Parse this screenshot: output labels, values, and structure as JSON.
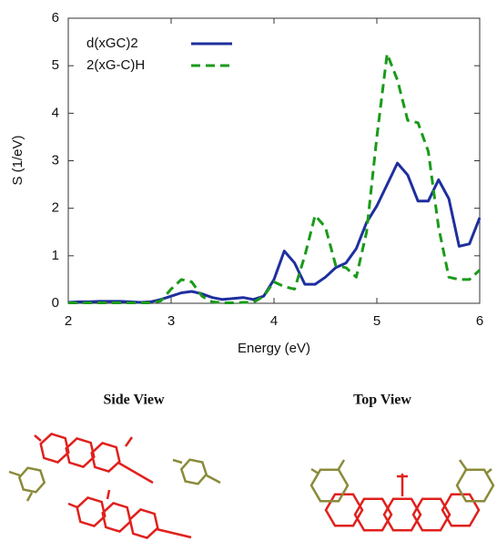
{
  "chart_data": {
    "type": "line",
    "x_label": "Energy (eV)",
    "y_label": "S (1/eV)",
    "x": [
      2.0,
      2.1,
      2.2,
      2.3,
      2.4,
      2.5,
      2.6,
      2.7,
      2.8,
      2.9,
      3.0,
      3.1,
      3.2,
      3.3,
      3.4,
      3.5,
      3.6,
      3.7,
      3.8,
      3.9,
      4.0,
      4.1,
      4.2,
      4.3,
      4.4,
      4.5,
      4.6,
      4.7,
      4.8,
      4.9,
      5.0,
      5.1,
      5.2,
      5.3,
      5.4,
      5.5,
      5.6,
      5.7,
      5.8,
      5.9,
      6.0
    ],
    "series": [
      {
        "name": "d(xGC)2",
        "color": "#1f2f9e",
        "dash": false,
        "values": [
          0.02,
          0.03,
          0.03,
          0.04,
          0.04,
          0.04,
          0.03,
          0.02,
          0.03,
          0.08,
          0.15,
          0.22,
          0.25,
          0.2,
          0.12,
          0.08,
          0.1,
          0.12,
          0.08,
          0.15,
          0.5,
          1.1,
          0.85,
          0.4,
          0.4,
          0.55,
          0.75,
          0.85,
          1.15,
          1.7,
          2.05,
          2.5,
          2.95,
          2.7,
          2.15,
          2.15,
          2.6,
          2.2,
          1.2,
          1.25,
          1.8
        ]
      },
      {
        "name": "2(xG-C)H",
        "color": "#1a9a1a",
        "dash": true,
        "values": [
          0.01,
          0.01,
          0.01,
          0.01,
          0.01,
          0.01,
          0.01,
          0.01,
          0.01,
          0.05,
          0.3,
          0.5,
          0.45,
          0.15,
          0.03,
          0.01,
          0.01,
          0.02,
          0.02,
          0.15,
          0.45,
          0.35,
          0.3,
          1.0,
          1.85,
          1.6,
          0.8,
          0.75,
          0.55,
          1.5,
          3.5,
          5.25,
          4.7,
          3.85,
          3.8,
          3.2,
          1.6,
          0.55,
          0.5,
          0.5,
          0.7
        ]
      }
    ],
    "xlim": [
      2,
      6
    ],
    "ylim": [
      0,
      6
    ],
    "xticks": [
      2,
      3,
      4,
      5,
      6
    ],
    "yticks": [
      0,
      1,
      2,
      3,
      4,
      5,
      6
    ],
    "grid": false,
    "legend": "upper-left"
  },
  "panels": {
    "side_view": "Side View",
    "top_view": "Top View"
  }
}
